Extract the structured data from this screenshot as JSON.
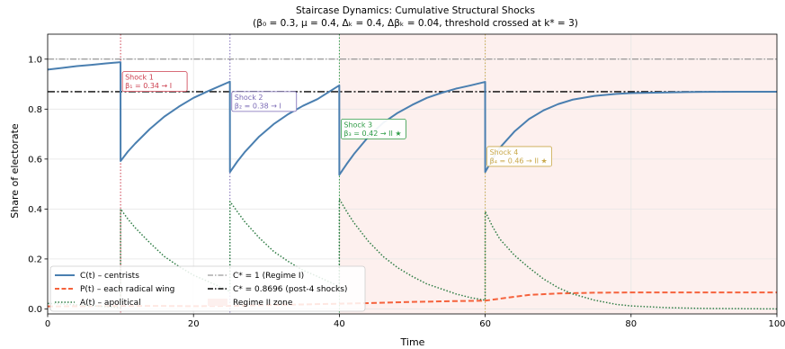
{
  "chart_data": {
    "type": "line",
    "title": "Staircase Dynamics: Cumulative Structural Shocks",
    "subtitle": "(β₀ = 0.3, μ = 0.4, Δₖ = 0.4, Δβₖ = 0.04, threshold crossed at k* = 3)",
    "xlabel": "Time",
    "ylabel": "Share of electorate",
    "xlim": [
      0,
      100
    ],
    "ylim": [
      -0.02,
      1.1
    ],
    "x_ticks": [
      "0",
      "20",
      "40",
      "60",
      "80",
      "100"
    ],
    "y_ticks": [
      "0.0",
      "0.2",
      "0.4",
      "0.6",
      "0.8",
      "1.0"
    ],
    "grid": true,
    "legend_position": "lower-left",
    "shocks": [
      {
        "time": 10,
        "label": "Shock 1",
        "detail": "β₁ = 0.34 → I",
        "color": "#cc3d4d"
      },
      {
        "time": 25,
        "label": "Shock 2",
        "detail": "β₂ = 0.38 → I",
        "color": "#7a69b5"
      },
      {
        "time": 40,
        "label": "Shock 3",
        "detail": "β₃ = 0.42 → II ★",
        "color": "#2e9c46"
      },
      {
        "time": 60,
        "label": "Shock 4",
        "detail": "β₄ = 0.46 → II ★",
        "color": "#c9a84a"
      }
    ],
    "regime2_start": 40,
    "reference_lines": [
      {
        "name": "C* = 1 (Regime I)",
        "y": 1.0
      },
      {
        "name": "C* = 0.8696 (post-4 shocks)",
        "y": 0.8696
      }
    ],
    "series": [
      {
        "name": "C(t) – centrists",
        "color": "#4a7fb0",
        "x": [
          0,
          2,
          4,
          6,
          8,
          9.99,
          10,
          11,
          12,
          14,
          16,
          18,
          20,
          22,
          24.99,
          25,
          26,
          27,
          29,
          31,
          33,
          35,
          37,
          39.99,
          40,
          41,
          42,
          44,
          46,
          48,
          50,
          52,
          54,
          56,
          58,
          59.99,
          60,
          61,
          62,
          64,
          66,
          68,
          70,
          72,
          75,
          78,
          80,
          85,
          90,
          95,
          100
        ],
        "y": [
          0.958,
          0.965,
          0.972,
          0.977,
          0.983,
          0.988,
          0.592,
          0.63,
          0.662,
          0.72,
          0.77,
          0.81,
          0.845,
          0.872,
          0.91,
          0.548,
          0.59,
          0.627,
          0.69,
          0.74,
          0.78,
          0.813,
          0.84,
          0.895,
          0.537,
          0.58,
          0.62,
          0.69,
          0.745,
          0.785,
          0.817,
          0.845,
          0.865,
          0.882,
          0.895,
          0.909,
          0.548,
          0.6,
          0.645,
          0.71,
          0.76,
          0.795,
          0.82,
          0.838,
          0.853,
          0.861,
          0.864,
          0.867,
          0.869,
          0.8695,
          0.8696
        ]
      },
      {
        "name": "P(t) – each radical wing",
        "color": "#f5623c",
        "x": [
          0,
          10,
          15,
          20,
          25,
          30,
          35,
          40,
          45,
          50,
          55,
          60,
          63,
          66,
          70,
          75,
          80,
          90,
          100
        ],
        "y": [
          0.01,
          0.012,
          0.012,
          0.011,
          0.012,
          0.015,
          0.018,
          0.021,
          0.024,
          0.028,
          0.031,
          0.033,
          0.045,
          0.056,
          0.062,
          0.065,
          0.066,
          0.066,
          0.066
        ]
      },
      {
        "name": "A(t) – apolitical",
        "color": "#2f7d45",
        "x": [
          0,
          2,
          4,
          6,
          8,
          9.99,
          10,
          11,
          12,
          14,
          16,
          18,
          20,
          22,
          24.99,
          25,
          26,
          27,
          29,
          31,
          33,
          35,
          37,
          39.99,
          40,
          41,
          42,
          44,
          46,
          48,
          50,
          52,
          54,
          56,
          58,
          59.99,
          60,
          61,
          62,
          64,
          66,
          68,
          70,
          72,
          75,
          78,
          80,
          85,
          90,
          95,
          100
        ],
        "y": [
          0.022,
          0.02,
          0.016,
          0.013,
          0.009,
          0.005,
          0.4,
          0.36,
          0.325,
          0.265,
          0.21,
          0.17,
          0.135,
          0.11,
          0.07,
          0.43,
          0.39,
          0.35,
          0.285,
          0.23,
          0.19,
          0.155,
          0.13,
          0.09,
          0.44,
          0.39,
          0.345,
          0.27,
          0.21,
          0.165,
          0.13,
          0.1,
          0.08,
          0.06,
          0.045,
          0.035,
          0.39,
          0.33,
          0.28,
          0.215,
          0.165,
          0.12,
          0.085,
          0.06,
          0.035,
          0.018,
          0.012,
          0.005,
          0.002,
          0.001,
          0.0
        ]
      }
    ],
    "legend": {
      "entries": [
        {
          "label": "C(t) – centrists",
          "style": "solid",
          "color": "#4a7fb0"
        },
        {
          "label": "P(t) – each radical wing",
          "style": "dashed",
          "color": "#f5623c"
        },
        {
          "label": "A(t) – apolitical",
          "style": "dotted",
          "color": "#2f7d45"
        },
        {
          "label": "C* = 1 (Regime I)",
          "style": "dashdot-gray",
          "color": "#808080"
        },
        {
          "label": "C* = 0.8696 (post-4 shocks)",
          "style": "dashdot-black",
          "color": "#000000"
        },
        {
          "label": "Regime II zone",
          "style": "patch",
          "color": "#fdf0ee"
        }
      ]
    }
  }
}
